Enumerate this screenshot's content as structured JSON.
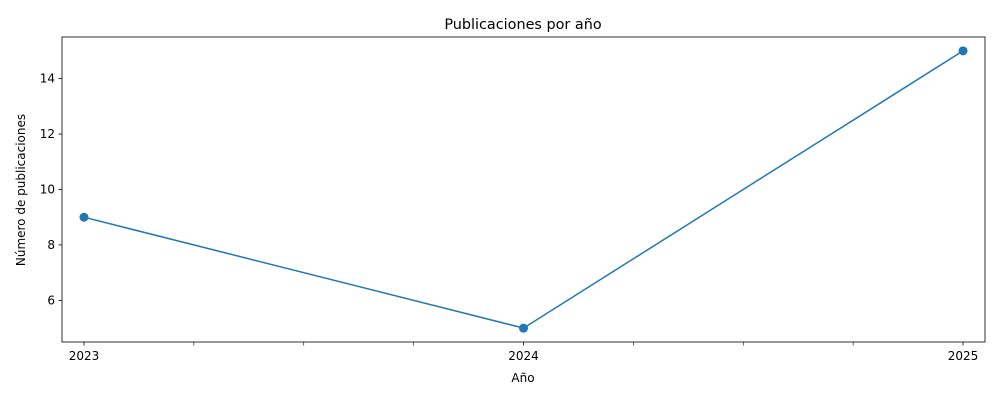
{
  "chart_data": {
    "type": "line",
    "title": "Publicaciones por año",
    "xlabel": "Año",
    "ylabel": "Número de publicaciones",
    "x": [
      2023,
      2024,
      2025
    ],
    "x_tick_labels": [
      "2023",
      "2024",
      "2025"
    ],
    "series": [
      {
        "values": [
          9,
          5,
          15
        ],
        "color": "#1f77b4",
        "marker": "circle"
      }
    ],
    "xlim": [
      2022.95,
      2025.05
    ],
    "ylim": [
      4.5,
      15.5
    ],
    "y_ticks": [
      6,
      8,
      10,
      12,
      14
    ],
    "x_minor_ticks": [
      2023.25,
      2023.5,
      2023.75,
      2024.25,
      2024.5,
      2024.75
    ],
    "grid": false,
    "legend": "none"
  }
}
